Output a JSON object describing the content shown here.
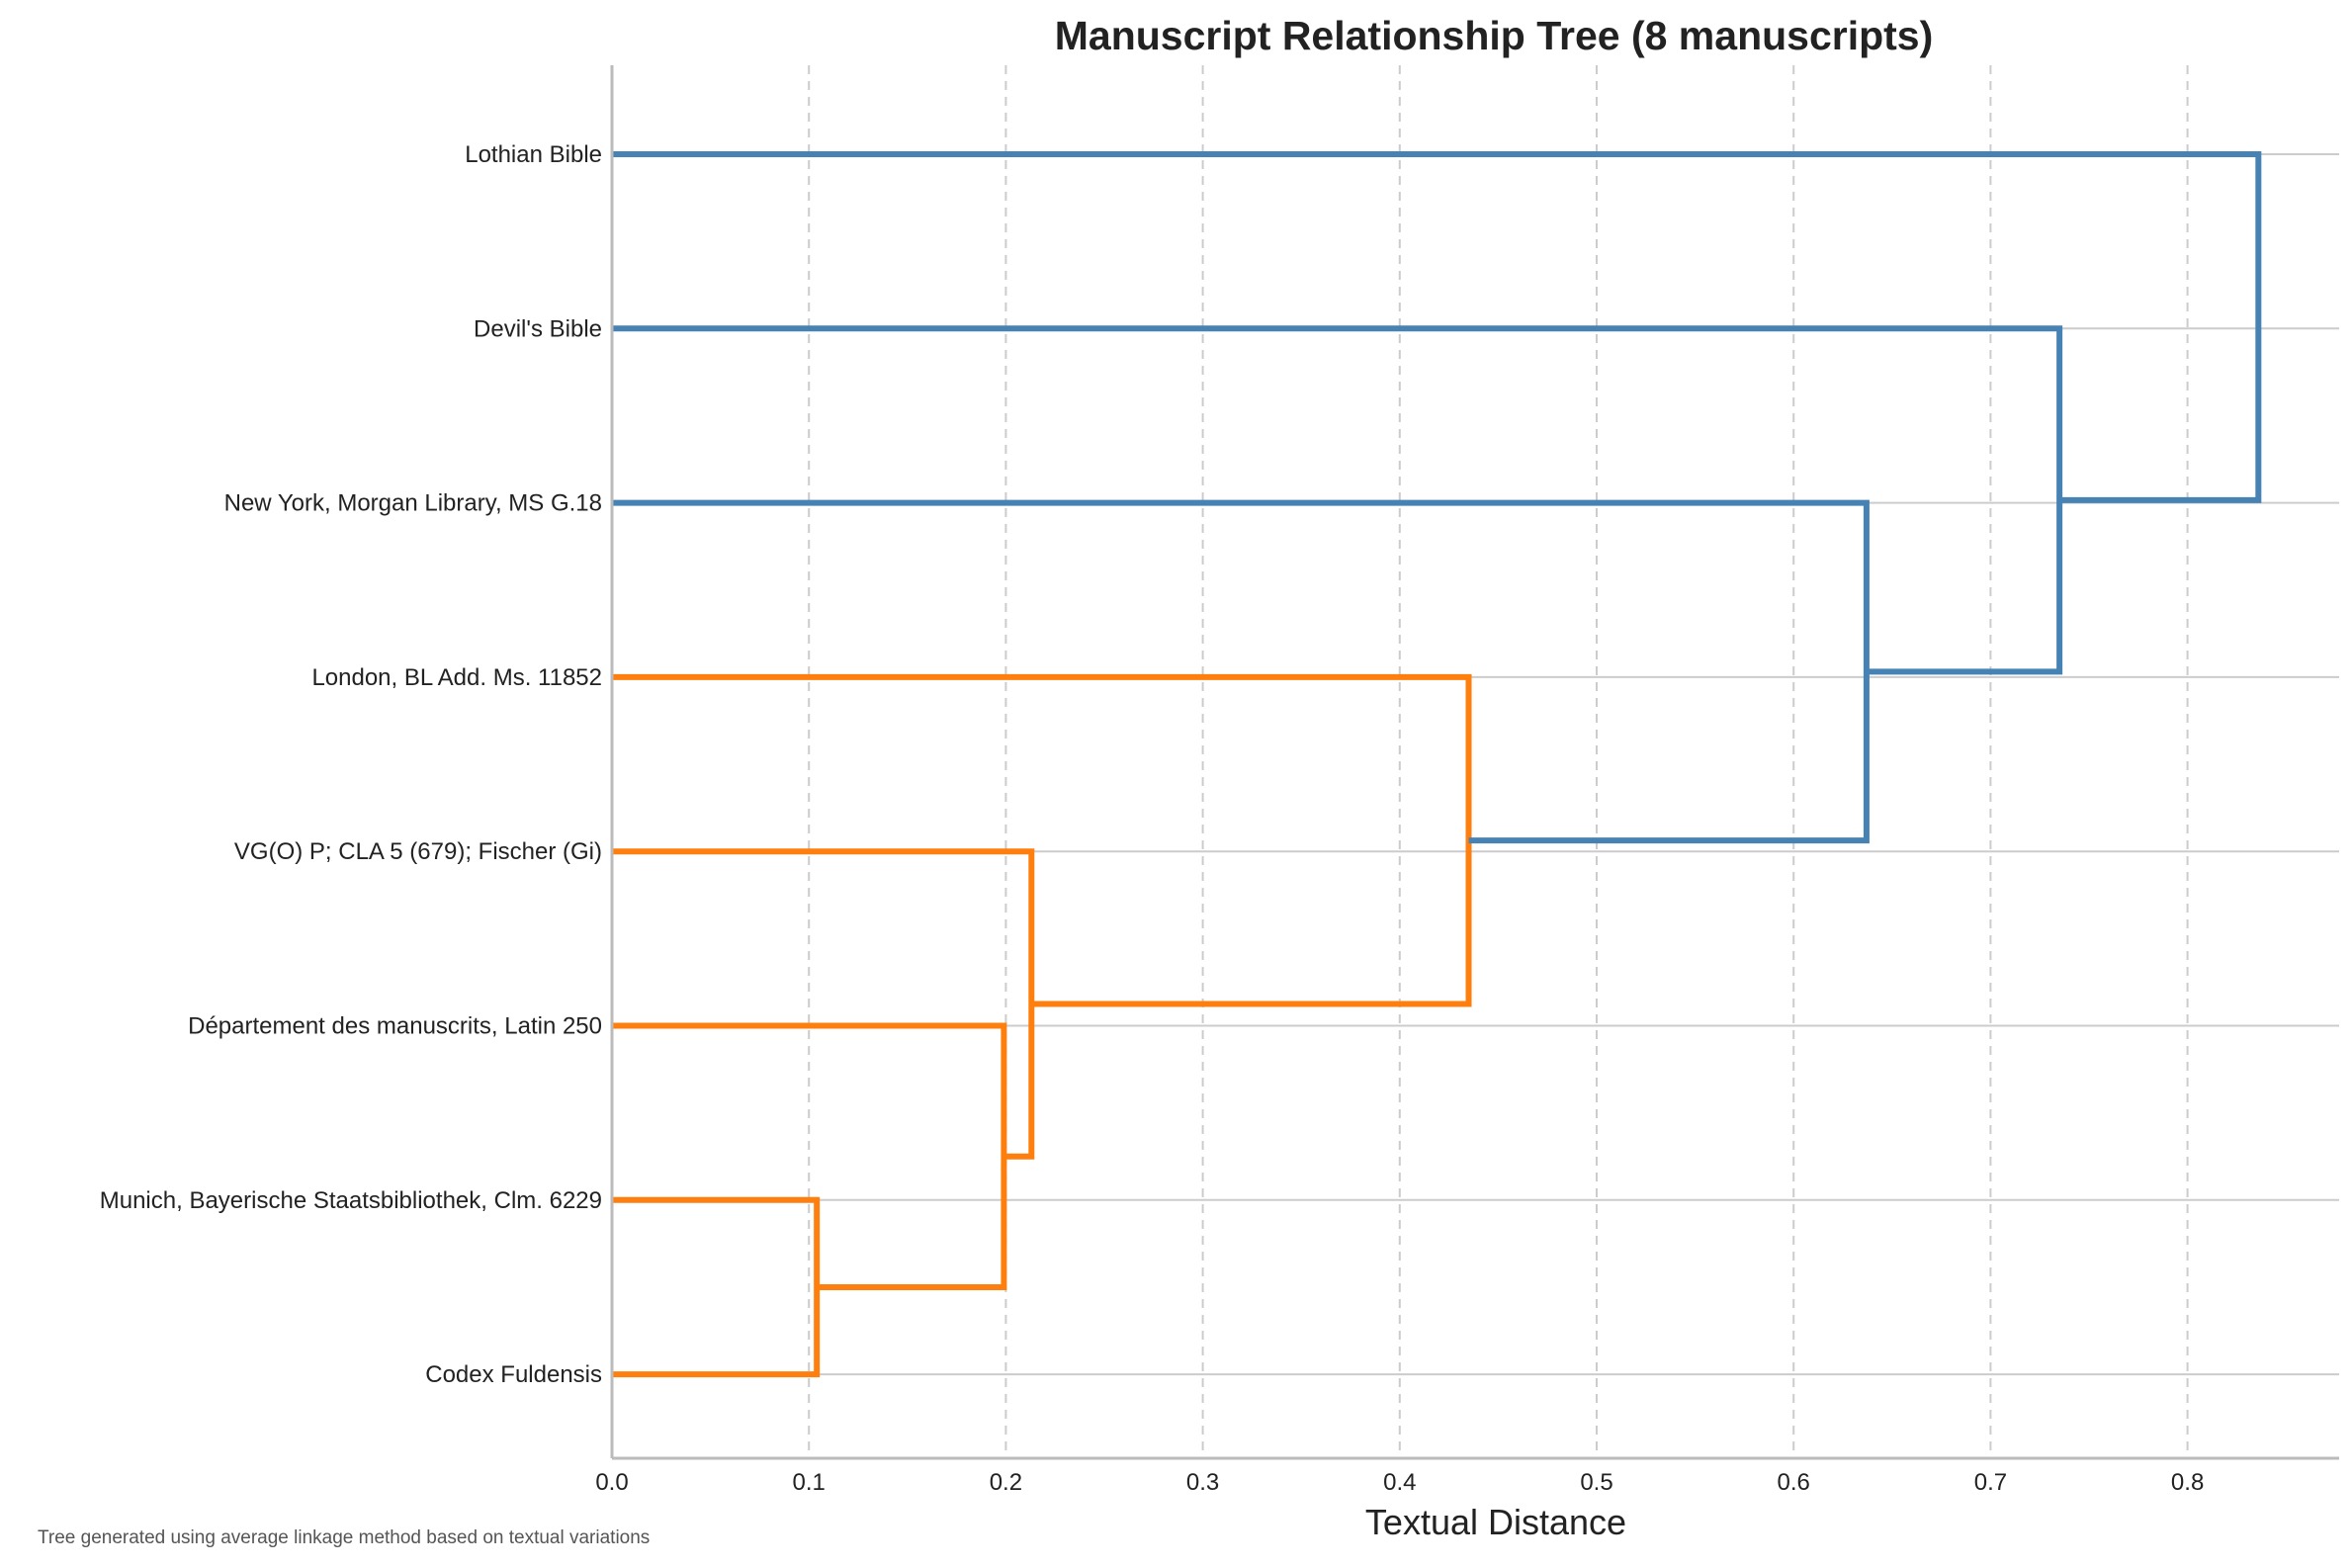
{
  "chart_data": {
    "type": "dendrogram",
    "orientation": "horizontal",
    "title": "Manuscript Relationship Tree (8 manuscripts)",
    "xlabel": "Textual Distance",
    "xlim": [
      0.0,
      0.877
    ],
    "xticks": [
      0.0,
      0.1,
      0.2,
      0.3,
      0.4,
      0.5,
      0.6,
      0.7,
      0.8
    ],
    "xtick_labels": [
      "0.0",
      "0.1",
      "0.2",
      "0.3",
      "0.4",
      "0.5",
      "0.6",
      "0.7",
      "0.8"
    ],
    "grid": "x-dashed",
    "leaves": [
      "Lothian Bible",
      "Devil's Bible",
      "New York, Morgan Library, MS G.18",
      "London, BL Add. Ms. 11852",
      "VG(O) P; CLA 5 (679); Fischer (Gi)",
      "Département des manuscrits, Latin 250",
      "Munich, Bayerische Staatsbibliothek, Clm. 6229",
      "Codex Fuldensis"
    ],
    "merges": [
      {
        "id": "c1",
        "children": [
          "Munich, Bayerische Staatsbibliothek, Clm. 6229",
          "Codex Fuldensis"
        ],
        "distance": 0.104,
        "color": "#ff7f0e"
      },
      {
        "id": "c2",
        "children": [
          "Département des manuscrits, Latin 250",
          "c1"
        ],
        "distance": 0.199,
        "color": "#ff7f0e"
      },
      {
        "id": "c3",
        "children": [
          "VG(O) P; CLA 5 (679); Fischer (Gi)",
          "c2"
        ],
        "distance": 0.213,
        "color": "#ff7f0e"
      },
      {
        "id": "c4",
        "children": [
          "London, BL Add. Ms. 11852",
          "c3"
        ],
        "distance": 0.435,
        "color": "#ff7f0e"
      },
      {
        "id": "c5",
        "children": [
          "New York, Morgan Library, MS G.18",
          "c4"
        ],
        "distance": 0.637,
        "color": "#4682b4"
      },
      {
        "id": "c6",
        "children": [
          "Devil's Bible",
          "c5"
        ],
        "distance": 0.735,
        "color": "#4682b4"
      },
      {
        "id": "c7",
        "children": [
          "Lothian Bible",
          "c6"
        ],
        "distance": 0.836,
        "color": "#4682b4"
      }
    ],
    "colors": {
      "upper_cluster": "#4682b4",
      "lower_cluster": "#ff7f0e",
      "grid": "#cccccc",
      "axis": "#bbbbbb",
      "text": "#222222",
      "footnote": "#555555"
    }
  },
  "footnote": "Tree generated using average linkage method based on textual variations"
}
